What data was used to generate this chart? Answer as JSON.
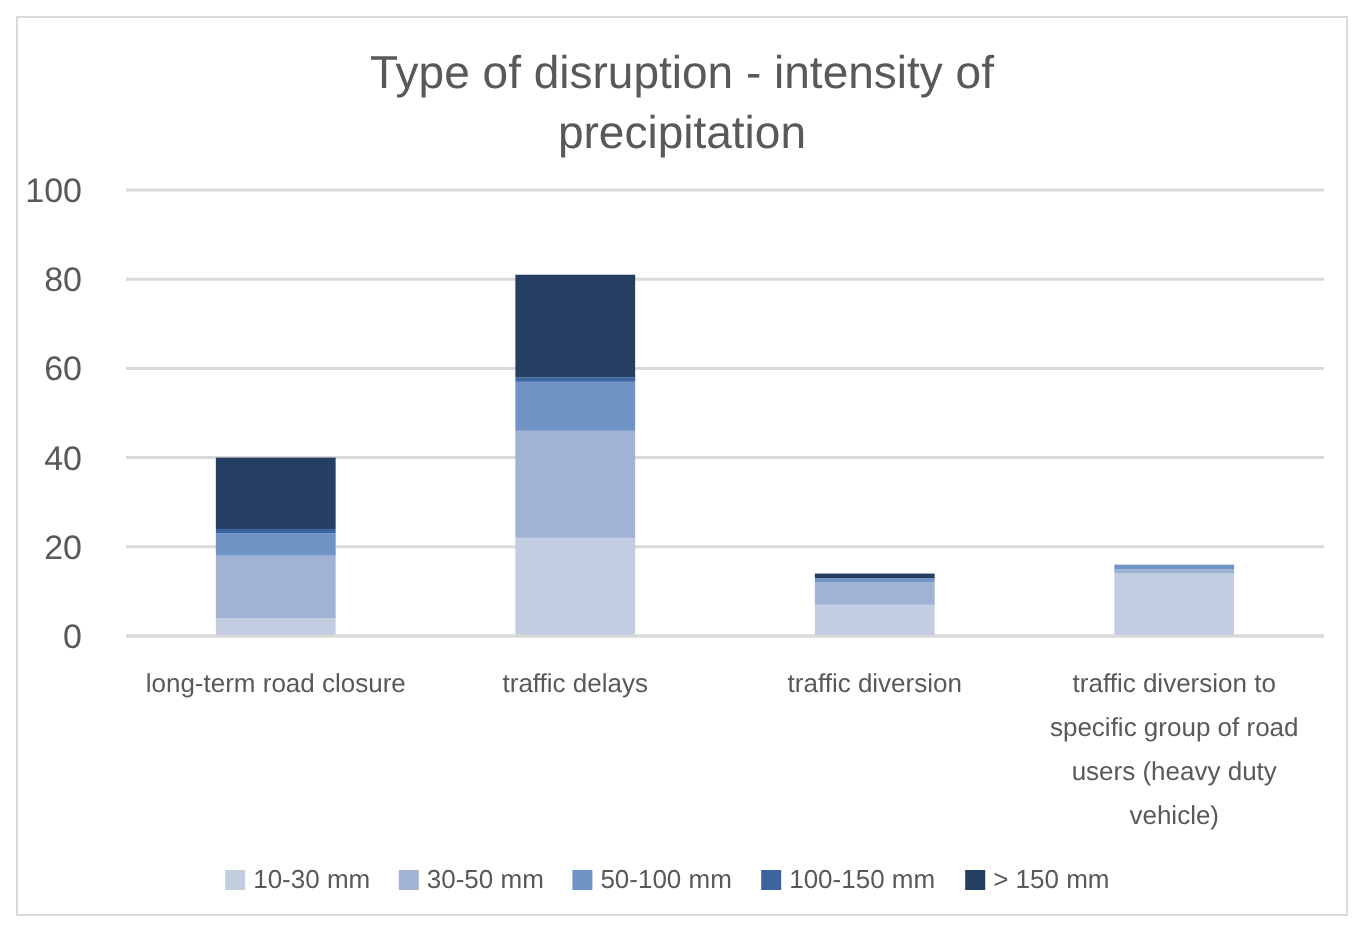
{
  "chart_data": {
    "type": "bar",
    "title": "Type of disruption - intensity of precipitation",
    "stacked": true,
    "categories": [
      "long-term road closure",
      "traffic delays",
      "traffic diversion",
      "traffic diversion to specific group of road users (heavy duty vehicle)"
    ],
    "series": [
      {
        "name": "10-30 mm",
        "color": "#c2cde2",
        "values": [
          4,
          22,
          7,
          14
        ]
      },
      {
        "name": "30-50 mm",
        "color": "#a0b3d5",
        "values": [
          14,
          24,
          5,
          1
        ]
      },
      {
        "name": "50-100 mm",
        "color": "#7194c6",
        "values": [
          5,
          11,
          1,
          1
        ]
      },
      {
        "name": "100-150 mm",
        "color": "#3c64a0",
        "values": [
          1,
          1,
          0,
          0
        ]
      },
      {
        "name": "> 150 mm",
        "color": "#253f63",
        "values": [
          16,
          23,
          1,
          0
        ]
      }
    ],
    "ylim": [
      0,
      100
    ],
    "yticks": [
      0,
      20,
      40,
      60,
      80,
      100
    ],
    "grid": "y",
    "legend": "bottom"
  }
}
